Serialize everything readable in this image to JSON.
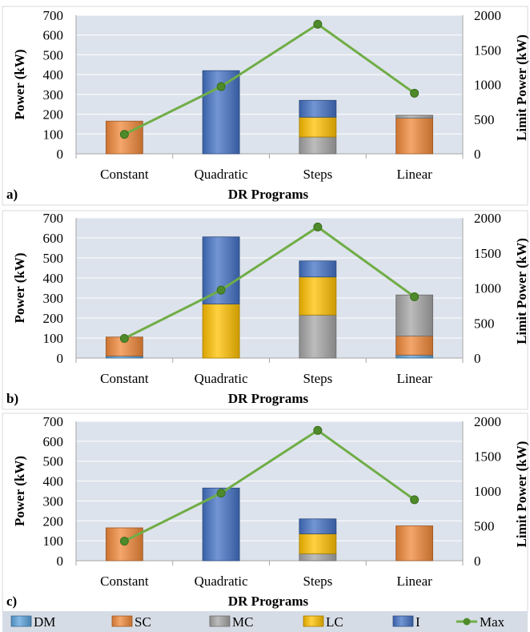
{
  "colors": {
    "DM": "#5ba3dc",
    "SC": "#f0883a",
    "MC": "#a6a6a6",
    "LC": "#ffc000",
    "I": "#4472c4",
    "Max": "#70ad47",
    "plot_bg": "#dde3ec",
    "legend_bg": "#d6dce5"
  },
  "legend": {
    "items": [
      "DM",
      "SC",
      "MC",
      "LC",
      "I",
      "Max"
    ]
  },
  "chart_data": [
    {
      "type": "bar",
      "stacked": true,
      "panel_label": "a)",
      "categories": [
        "Constant",
        "Quadratic",
        "Steps",
        "Linear"
      ],
      "xlabel": "DR Programs",
      "ylabel": "Power (kW)",
      "ylabel_right": "Limit Power (kW)",
      "ylim": [
        0,
        700
      ],
      "ylim_right": [
        0,
        2000
      ],
      "yticks": [
        "0",
        "100",
        "200",
        "300",
        "400",
        "500",
        "600",
        "700"
      ],
      "yticks_right": [
        "0",
        "500",
        "1000",
        "1500",
        "2000"
      ],
      "grid": true,
      "series": [
        {
          "name": "DM",
          "values": [
            0,
            0,
            0,
            0
          ]
        },
        {
          "name": "SC",
          "values": [
            165,
            0,
            0,
            180
          ]
        },
        {
          "name": "MC",
          "values": [
            0,
            0,
            85,
            15
          ]
        },
        {
          "name": "LC",
          "values": [
            0,
            0,
            100,
            0
          ]
        },
        {
          "name": "I",
          "values": [
            0,
            420,
            85,
            0
          ]
        }
      ],
      "line_series": {
        "name": "Max",
        "axis": "right",
        "values": [
          280,
          970,
          1870,
          875
        ]
      }
    },
    {
      "type": "bar",
      "stacked": true,
      "panel_label": "b)",
      "categories": [
        "Constant",
        "Quadratic",
        "Steps",
        "Linear"
      ],
      "xlabel": "DR Programs",
      "ylabel": "Power (kW)",
      "ylabel_right": "Limit Power (kW)",
      "ylim": [
        0,
        700
      ],
      "ylim_right": [
        0,
        2000
      ],
      "yticks": [
        "0",
        "100",
        "200",
        "300",
        "400",
        "500",
        "600",
        "700"
      ],
      "yticks_right": [
        "0",
        "500",
        "1000",
        "1500",
        "2000"
      ],
      "grid": true,
      "series": [
        {
          "name": "DM",
          "values": [
            10,
            0,
            0,
            15
          ]
        },
        {
          "name": "SC",
          "values": [
            95,
            0,
            0,
            95
          ]
        },
        {
          "name": "MC",
          "values": [
            0,
            0,
            215,
            205
          ]
        },
        {
          "name": "LC",
          "values": [
            0,
            270,
            190,
            0
          ]
        },
        {
          "name": "I",
          "values": [
            0,
            335,
            80,
            0
          ]
        }
      ],
      "line_series": {
        "name": "Max",
        "axis": "right",
        "values": [
          280,
          970,
          1870,
          875
        ]
      }
    },
    {
      "type": "bar",
      "stacked": true,
      "panel_label": "c)",
      "categories": [
        "Constant",
        "Quadratic",
        "Steps",
        "Linear"
      ],
      "xlabel": "DR Programs",
      "ylabel": "Power (kW)",
      "ylabel_right": "Limit Power (kW)",
      "ylim": [
        0,
        700
      ],
      "ylim_right": [
        0,
        2000
      ],
      "yticks": [
        "0",
        "100",
        "200",
        "300",
        "400",
        "500",
        "600",
        "700"
      ],
      "yticks_right": [
        "0",
        "500",
        "1000",
        "1500",
        "2000"
      ],
      "grid": true,
      "series": [
        {
          "name": "DM",
          "values": [
            0,
            0,
            0,
            0
          ]
        },
        {
          "name": "SC",
          "values": [
            165,
            0,
            0,
            175
          ]
        },
        {
          "name": "MC",
          "values": [
            0,
            0,
            35,
            0
          ]
        },
        {
          "name": "LC",
          "values": [
            0,
            0,
            100,
            0
          ]
        },
        {
          "name": "I",
          "values": [
            0,
            365,
            75,
            0
          ]
        }
      ],
      "line_series": {
        "name": "Max",
        "axis": "right",
        "values": [
          280,
          970,
          1870,
          875
        ]
      }
    }
  ]
}
